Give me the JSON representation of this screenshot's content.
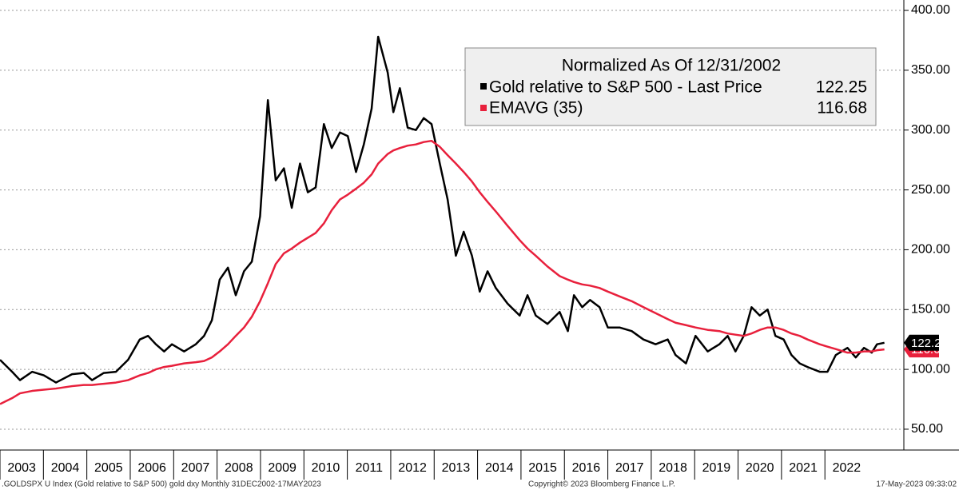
{
  "chart_data": {
    "type": "line",
    "legend_title": "Normalized As Of 12/31/2002",
    "source": ".GOLDSPX U Index (Gold relative to S&P 500) gold dxy  Monthly 31DEC2002-17MAY2023",
    "copyright": "Copyright© 2023 Bloomberg Finance L.P.",
    "timestamp": "17-May-2023 09:33:02",
    "x": [
      2003.0,
      2003.28,
      2003.46,
      2003.74,
      2004.01,
      2004.29,
      2004.66,
      2004.93,
      2005.12,
      2005.39,
      2005.67,
      2005.95,
      2006.22,
      2006.41,
      2006.59,
      2006.78,
      2006.96,
      2007.24,
      2007.51,
      2007.7,
      2007.88,
      2008.06,
      2008.25,
      2008.43,
      2008.62,
      2008.8,
      2008.99,
      2009.17,
      2009.35,
      2009.54,
      2009.72,
      2009.91,
      2010.09,
      2010.27,
      2010.46,
      2010.64,
      2010.83,
      2011.01,
      2011.2,
      2011.38,
      2011.56,
      2011.71,
      2011.93,
      2012.06,
      2012.21,
      2012.39,
      2012.58,
      2012.76,
      2012.94,
      2013.13,
      2013.31,
      2013.5,
      2013.68,
      2013.87,
      2014.05,
      2014.23,
      2014.42,
      2014.69,
      2014.97,
      2015.15,
      2015.34,
      2015.61,
      2015.89,
      2016.08,
      2016.22,
      2016.41,
      2016.59,
      2016.81,
      2017.0,
      2017.27,
      2017.55,
      2017.82,
      2018.1,
      2018.38,
      2018.56,
      2018.8,
      2019.02,
      2019.3,
      2019.57,
      2019.76,
      2019.94,
      2020.13,
      2020.31,
      2020.5,
      2020.68,
      2020.86,
      2021.05,
      2021.23,
      2021.42,
      2021.6,
      2021.88,
      2022.06,
      2022.25,
      2022.52,
      2022.71,
      2022.9,
      2023.08,
      2023.2,
      2023.37
    ],
    "series": [
      {
        "name": "Gold relative to S&P 500 - Last Price",
        "color": "#000000",
        "values": [
          108,
          98,
          91,
          98,
          95,
          89,
          96,
          97,
          91,
          97,
          98,
          108,
          125,
          128,
          121,
          115,
          121,
          115,
          121,
          128,
          141,
          175,
          185,
          162,
          182,
          190,
          228,
          325,
          258,
          268,
          235,
          272,
          248,
          252,
          305,
          285,
          298,
          295,
          265,
          288,
          318,
          378,
          348,
          315,
          335,
          302,
          300,
          310,
          305,
          272,
          242,
          195,
          215,
          195,
          165,
          182,
          168,
          155,
          145,
          162,
          145,
          138,
          148,
          132,
          162,
          152,
          158,
          152,
          135,
          135,
          132,
          125,
          121,
          125,
          112,
          105,
          128,
          115,
          121,
          128,
          115,
          128,
          152,
          145,
          150,
          128,
          125,
          112,
          105,
          102,
          98,
          98,
          112,
          118,
          110,
          118,
          114,
          121,
          122.25
        ]
      },
      {
        "name": "EMAVG (35)",
        "color": "#e8203c",
        "values": [
          71,
          76,
          80,
          82,
          83,
          84,
          86,
          87,
          87,
          88,
          89,
          91,
          95,
          97,
          100,
          102,
          103,
          105,
          106,
          107,
          110,
          115,
          121,
          128,
          135,
          144,
          157,
          172,
          188,
          197,
          201,
          206,
          210,
          214,
          222,
          233,
          242,
          246,
          251,
          256,
          263,
          272,
          280,
          283,
          285,
          287,
          288,
          290,
          291,
          286,
          279,
          272,
          265,
          257,
          248,
          240,
          232,
          220,
          208,
          201,
          195,
          186,
          178,
          175,
          173,
          171,
          170,
          168,
          165,
          161,
          157,
          152,
          147,
          142,
          139,
          137,
          135,
          133,
          132,
          130,
          129,
          128,
          130,
          133,
          135,
          135,
          133,
          130,
          128,
          125,
          121,
          119,
          117,
          114,
          114,
          115,
          115,
          116,
          116.68
        ]
      }
    ],
    "xlim": [
      2003,
      2023.8
    ],
    "xticks": [
      2003,
      2004,
      2005,
      2006,
      2007,
      2008,
      2009,
      2010,
      2011,
      2012,
      2013,
      2014,
      2015,
      2016,
      2017,
      2018,
      2019,
      2020,
      2021,
      2022
    ],
    "ylim": [
      32.6,
      408.7
    ],
    "yticks": [
      {
        "value": 50,
        "label": "50.00"
      },
      {
        "value": 100,
        "label": "100.00"
      },
      {
        "value": 150,
        "label": "150.00"
      },
      {
        "value": 200,
        "label": "200.00"
      },
      {
        "value": 250,
        "label": "250.00"
      },
      {
        "value": 300,
        "label": "300.00"
      },
      {
        "value": 350,
        "label": "350.00"
      },
      {
        "value": 400,
        "label": "400.00"
      }
    ],
    "grid": true
  }
}
